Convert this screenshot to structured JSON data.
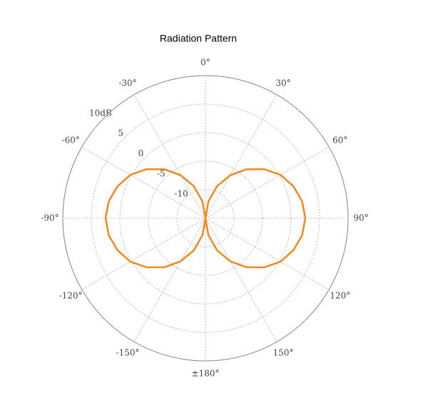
{
  "chart_data": {
    "type": "polar",
    "title": "Radiation Pattern",
    "x": [
      0,
      10,
      20,
      30,
      40,
      50,
      60,
      70,
      80,
      90,
      100,
      110,
      120,
      130,
      140,
      150,
      160,
      170,
      180,
      190,
      200,
      210,
      220,
      230,
      240,
      250,
      260,
      270,
      280,
      290,
      300,
      310,
      320,
      330,
      340,
      350
    ],
    "values": [
      -15,
      -12.0,
      -9.0,
      -6.3,
      -3.8,
      -1.6,
      0.2,
      1.4,
      2.2,
      2.5,
      2.2,
      1.4,
      0.2,
      -1.6,
      -3.8,
      -6.3,
      -9.0,
      -12.0,
      -15,
      -12.0,
      -9.0,
      -6.3,
      -3.8,
      -1.6,
      0.2,
      1.4,
      2.2,
      2.5,
      2.2,
      1.4,
      0.2,
      -1.6,
      -3.8,
      -6.3,
      -9.0,
      -12.0
    ],
    "color": "#f5871f",
    "ylim": [
      -15,
      10
    ],
    "yticks": [
      -10,
      -5,
      0,
      5,
      {
        "value": 10,
        "label": "10dB"
      }
    ],
    "xticks": [
      {
        "value": 0,
        "label": "0°"
      },
      {
        "value": 30,
        "label": "30°"
      },
      {
        "value": 60,
        "label": "60°"
      },
      {
        "value": 90,
        "label": "90°"
      },
      {
        "value": 120,
        "label": "120°"
      },
      {
        "value": 150,
        "label": "150°"
      },
      {
        "value": 180,
        "label": "±180°"
      },
      {
        "value": -150,
        "label": "-150°"
      },
      {
        "value": -120,
        "label": "-120°"
      },
      {
        "value": -90,
        "label": "-90°"
      },
      {
        "value": -60,
        "label": "-60°"
      },
      {
        "value": -30,
        "label": "-30°"
      }
    ],
    "grid": true
  }
}
